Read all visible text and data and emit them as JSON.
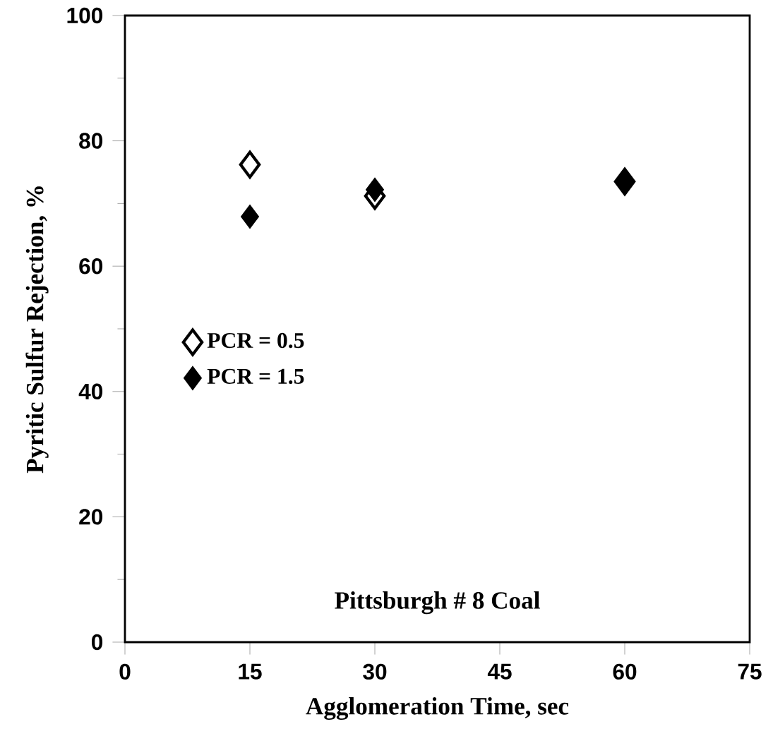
{
  "chart_data": {
    "type": "scatter",
    "xlabel": "Agglomeration Time, sec",
    "ylabel": "Pyritic Sulfur Rejection, %",
    "annotations": [
      "Pittsburgh # 8 Coal"
    ],
    "x": [
      15,
      30,
      60
    ],
    "series": [
      {
        "name": "PCR = 0.5",
        "color": "#000000",
        "values": [
          76.2,
          71.2,
          73.5
        ]
      },
      {
        "name": "PCR = 1.5",
        "color": "#000000",
        "values": [
          67.9,
          72.2,
          73.5
        ]
      }
    ],
    "xlim": [
      0,
      75
    ],
    "ylim": [
      0,
      100
    ],
    "xticks": [
      0,
      15,
      30,
      45,
      60,
      75
    ],
    "yticks": [
      0,
      20,
      40,
      60,
      80,
      100
    ],
    "legend": "left",
    "marker": "diamond",
    "grid": false
  }
}
